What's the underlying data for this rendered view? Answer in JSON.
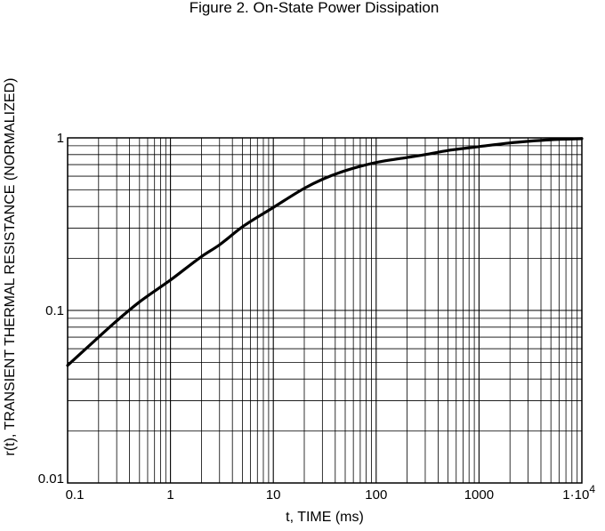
{
  "chart_data": {
    "type": "line",
    "title": "Figure 2. On-State Power Dissipation",
    "xlabel": "t, TIME (ms)",
    "ylabel": "r(t), TRANSIENT THERMAL RESISTANCE (NORMALIZED)",
    "x_scale": "log",
    "y_scale": "log",
    "xlim": [
      0.1,
      10000
    ],
    "ylim": [
      0.01,
      1
    ],
    "grid": true,
    "x_ticks": [
      {
        "value": 0.1,
        "label": "0.1"
      },
      {
        "value": 1,
        "label": "1"
      },
      {
        "value": 10,
        "label": "10"
      },
      {
        "value": 100,
        "label": "100"
      },
      {
        "value": 1000,
        "label": "1000"
      },
      {
        "value": 10000,
        "label": "1·10",
        "sup": "4"
      }
    ],
    "y_ticks": [
      {
        "value": 0.01,
        "label": "0.01"
      },
      {
        "value": 0.1,
        "label": "0.1"
      },
      {
        "value": 1,
        "label": "1"
      }
    ],
    "series": [
      {
        "color": "#000000",
        "x": [
          0.1,
          0.2,
          0.3,
          0.5,
          1,
          2,
          3,
          5,
          10,
          20,
          30,
          50,
          100,
          200,
          300,
          500,
          1000,
          2000,
          3000,
          5000,
          10000
        ],
        "y": [
          0.048,
          0.07,
          0.087,
          0.112,
          0.15,
          0.205,
          0.24,
          0.305,
          0.395,
          0.51,
          0.575,
          0.645,
          0.72,
          0.77,
          0.8,
          0.845,
          0.89,
          0.935,
          0.955,
          0.975,
          0.99
        ]
      }
    ]
  }
}
